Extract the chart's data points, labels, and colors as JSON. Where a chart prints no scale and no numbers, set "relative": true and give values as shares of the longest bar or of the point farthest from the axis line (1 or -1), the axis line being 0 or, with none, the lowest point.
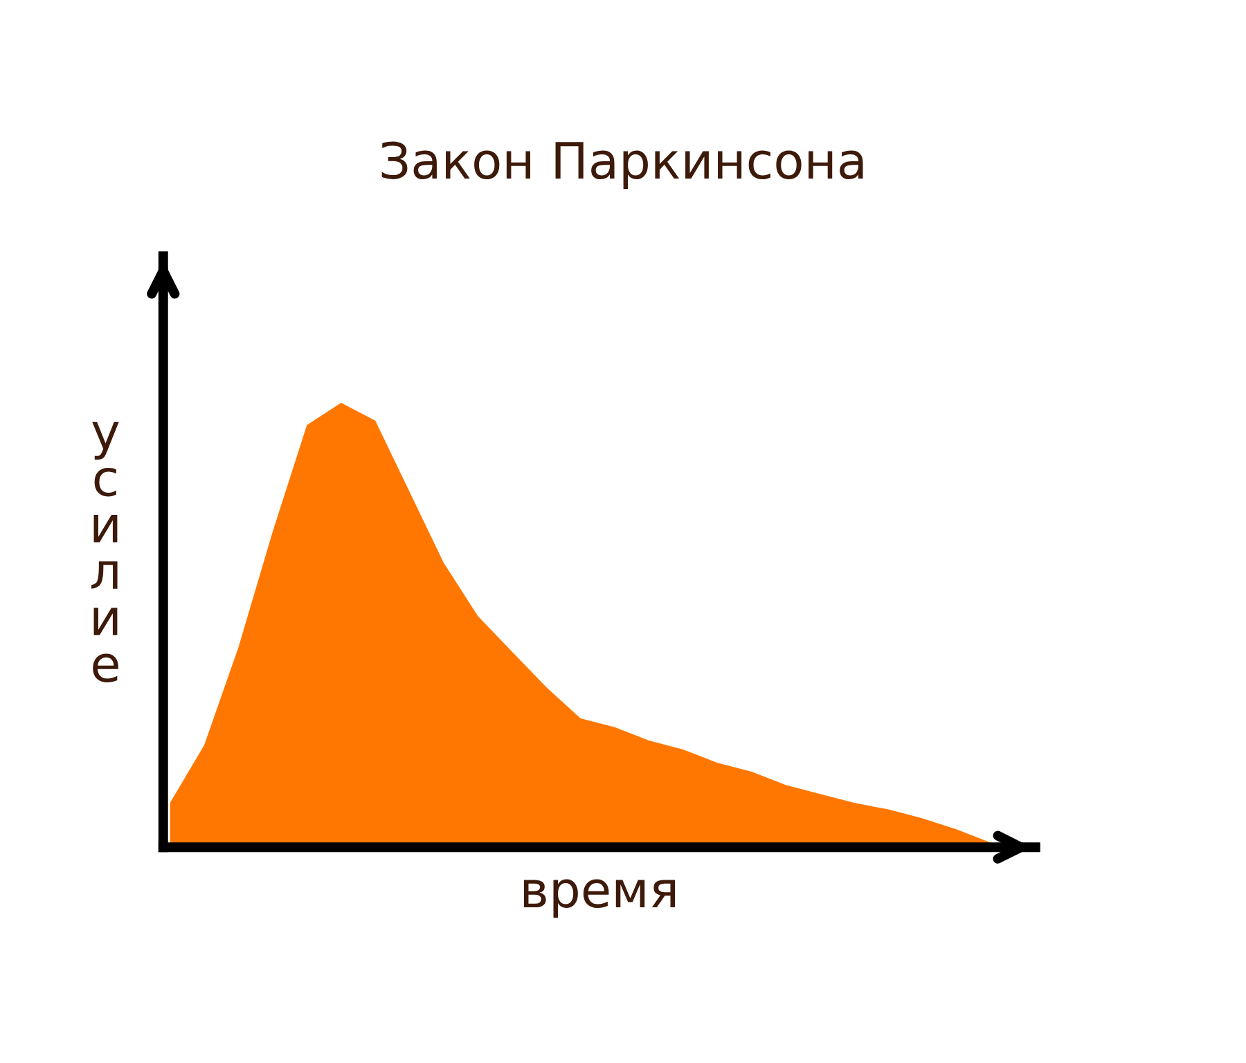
{
  "chart_data": {
    "type": "area",
    "title": "Закон Паркинсона",
    "xlabel": "время",
    "ylabel": "усилие",
    "relative": true,
    "color": "#ff7700",
    "categories": [
      null,
      null,
      null,
      null,
      null,
      null,
      null,
      null,
      null,
      null,
      null,
      null,
      null,
      null,
      null,
      null,
      null,
      null,
      null,
      null,
      null,
      null,
      null,
      null,
      null
    ],
    "values": [
      0.1,
      0.23,
      0.45,
      0.71,
      0.95,
      1.0,
      0.96,
      0.8,
      0.64,
      0.52,
      0.44,
      0.36,
      0.29,
      0.27,
      0.24,
      0.22,
      0.19,
      0.17,
      0.14,
      0.12,
      0.1,
      0.085,
      0.065,
      0.04,
      0.01
    ]
  }
}
